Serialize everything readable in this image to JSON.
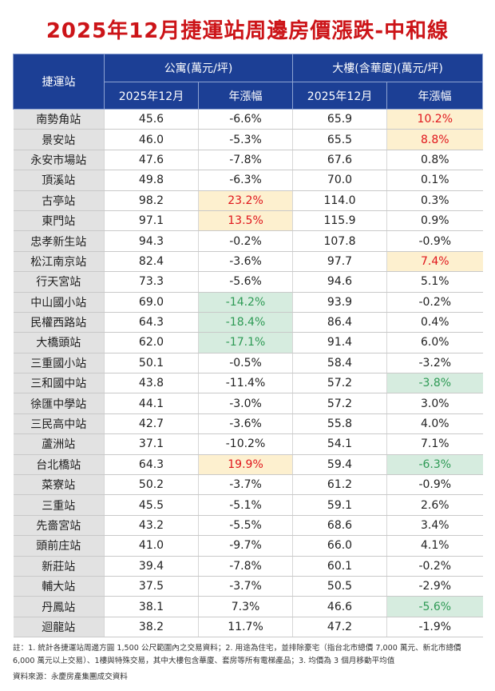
{
  "title": "2025年12月捷運站周邊房價漲跌-中和線",
  "headers": {
    "station": "捷運站",
    "apartment": "公寓(萬元/坪)",
    "building": "大樓(含華廈)(萬元/坪)",
    "price_col": "2025年12月",
    "change_col": "年漲幅"
  },
  "colors": {
    "header_bg": "#1c3f95",
    "up_highlight": "#fdf0cf",
    "up_text": "#e0161c",
    "down_highlight": "#d6ecdf",
    "down_text": "#2e9a55",
    "title": "#cc1418"
  },
  "rows": [
    {
      "station": "南勢角站",
      "apt_price": "45.6",
      "apt_change": "-6.6%",
      "bld_price": "65.9",
      "bld_change": "10.2%",
      "apt_hl": "",
      "bld_hl": "up"
    },
    {
      "station": "景安站",
      "apt_price": "46.0",
      "apt_change": "-5.3%",
      "bld_price": "65.5",
      "bld_change": "8.8%",
      "apt_hl": "",
      "bld_hl": "up"
    },
    {
      "station": "永安市場站",
      "apt_price": "47.6",
      "apt_change": "-7.8%",
      "bld_price": "67.6",
      "bld_change": "0.8%",
      "apt_hl": "",
      "bld_hl": ""
    },
    {
      "station": "頂溪站",
      "apt_price": "49.8",
      "apt_change": "-6.3%",
      "bld_price": "70.0",
      "bld_change": "0.1%",
      "apt_hl": "",
      "bld_hl": ""
    },
    {
      "station": "古亭站",
      "apt_price": "98.2",
      "apt_change": "23.2%",
      "bld_price": "114.0",
      "bld_change": "0.3%",
      "apt_hl": "up",
      "bld_hl": ""
    },
    {
      "station": "東門站",
      "apt_price": "97.1",
      "apt_change": "13.5%",
      "bld_price": "115.9",
      "bld_change": "0.9%",
      "apt_hl": "up",
      "bld_hl": ""
    },
    {
      "station": "忠孝新生站",
      "apt_price": "94.3",
      "apt_change": "-0.2%",
      "bld_price": "107.8",
      "bld_change": "-0.9%",
      "apt_hl": "",
      "bld_hl": ""
    },
    {
      "station": "松江南京站",
      "apt_price": "82.4",
      "apt_change": "-3.6%",
      "bld_price": "97.7",
      "bld_change": "7.4%",
      "apt_hl": "",
      "bld_hl": "up"
    },
    {
      "station": "行天宮站",
      "apt_price": "73.3",
      "apt_change": "-5.6%",
      "bld_price": "94.6",
      "bld_change": "5.1%",
      "apt_hl": "",
      "bld_hl": ""
    },
    {
      "station": "中山國小站",
      "apt_price": "69.0",
      "apt_change": "-14.2%",
      "bld_price": "93.9",
      "bld_change": "-0.2%",
      "apt_hl": "down",
      "bld_hl": ""
    },
    {
      "station": "民權西路站",
      "apt_price": "64.3",
      "apt_change": "-18.4%",
      "bld_price": "86.4",
      "bld_change": "0.4%",
      "apt_hl": "down",
      "bld_hl": ""
    },
    {
      "station": "大橋頭站",
      "apt_price": "62.0",
      "apt_change": "-17.1%",
      "bld_price": "91.4",
      "bld_change": "6.0%",
      "apt_hl": "down",
      "bld_hl": ""
    },
    {
      "station": "三重國小站",
      "apt_price": "50.1",
      "apt_change": "-0.5%",
      "bld_price": "58.4",
      "bld_change": "-3.2%",
      "apt_hl": "",
      "bld_hl": ""
    },
    {
      "station": "三和國中站",
      "apt_price": "43.8",
      "apt_change": "-11.4%",
      "bld_price": "57.2",
      "bld_change": "-3.8%",
      "apt_hl": "",
      "bld_hl": "down"
    },
    {
      "station": "徐匯中學站",
      "apt_price": "44.1",
      "apt_change": "-3.0%",
      "bld_price": "57.2",
      "bld_change": "3.0%",
      "apt_hl": "",
      "bld_hl": ""
    },
    {
      "station": "三民高中站",
      "apt_price": "42.7",
      "apt_change": "-3.6%",
      "bld_price": "55.8",
      "bld_change": "4.0%",
      "apt_hl": "",
      "bld_hl": ""
    },
    {
      "station": "蘆洲站",
      "apt_price": "37.1",
      "apt_change": "-10.2%",
      "bld_price": "54.1",
      "bld_change": "7.1%",
      "apt_hl": "",
      "bld_hl": ""
    },
    {
      "station": "台北橋站",
      "apt_price": "64.3",
      "apt_change": "19.9%",
      "bld_price": "59.4",
      "bld_change": "-6.3%",
      "apt_hl": "up",
      "bld_hl": "down"
    },
    {
      "station": "菜寮站",
      "apt_price": "50.2",
      "apt_change": "-3.7%",
      "bld_price": "61.2",
      "bld_change": "-0.9%",
      "apt_hl": "",
      "bld_hl": ""
    },
    {
      "station": "三重站",
      "apt_price": "45.5",
      "apt_change": "-5.1%",
      "bld_price": "59.1",
      "bld_change": "2.6%",
      "apt_hl": "",
      "bld_hl": ""
    },
    {
      "station": "先嗇宮站",
      "apt_price": "43.2",
      "apt_change": "-5.5%",
      "bld_price": "68.6",
      "bld_change": "3.4%",
      "apt_hl": "",
      "bld_hl": ""
    },
    {
      "station": "頭前庄站",
      "apt_price": "41.0",
      "apt_change": "-9.7%",
      "bld_price": "66.0",
      "bld_change": "4.1%",
      "apt_hl": "",
      "bld_hl": ""
    },
    {
      "station": "新莊站",
      "apt_price": "39.4",
      "apt_change": "-7.8%",
      "bld_price": "60.1",
      "bld_change": "-0.2%",
      "apt_hl": "",
      "bld_hl": ""
    },
    {
      "station": "輔大站",
      "apt_price": "37.5",
      "apt_change": "-3.7%",
      "bld_price": "50.5",
      "bld_change": "-2.9%",
      "apt_hl": "",
      "bld_hl": ""
    },
    {
      "station": "丹鳳站",
      "apt_price": "38.1",
      "apt_change": "7.3%",
      "bld_price": "46.6",
      "bld_change": "-5.6%",
      "apt_hl": "",
      "bld_hl": "down"
    },
    {
      "station": "迴龍站",
      "apt_price": "38.2",
      "apt_change": "11.7%",
      "bld_price": "47.2",
      "bld_change": "-1.9%",
      "apt_hl": "",
      "bld_hl": ""
    }
  ],
  "note": "註：1. 統計各捷運站周邊方圓 1,500 公尺範圍內之交易資料；2. 用途為住宅，並排除豪宅（指台北市總價 7,000 萬元、新北市總價 6,000 萬元以上交易）、1樓與特殊交易，其中大樓包含華廈、套房等所有電梯產品；3. 均價為 3 個月移動平均值",
  "source": "資料來源：永慶房產集團成交資料"
}
